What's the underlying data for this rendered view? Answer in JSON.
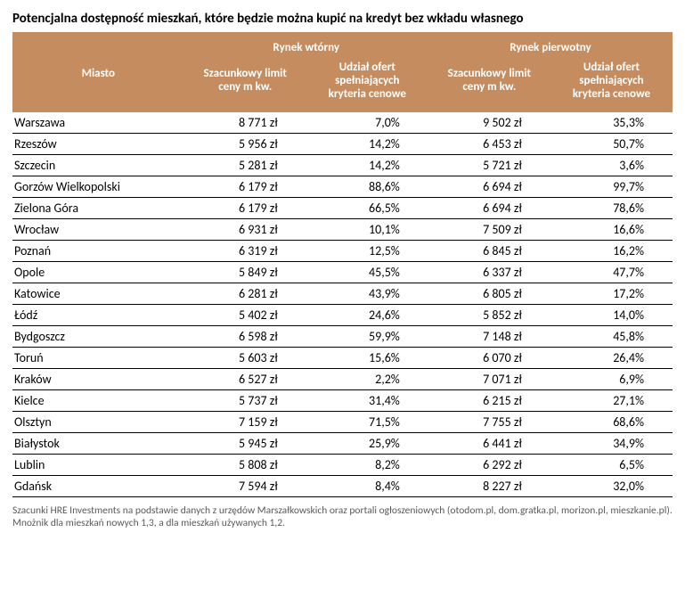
{
  "title": "Potencjalna dostępność mieszkań, które będzie można kupić na kredyt bez wkładu własnego",
  "header": {
    "city": "Miasto",
    "group_secondary": "Rynek wtórny",
    "group_primary": "Rynek pierwotny",
    "col_limit": "Szacunkowy limit\nceny m kw.",
    "col_share": "Udział ofert\nspełniających\nkryteria cenowe"
  },
  "styling": {
    "header_bg": "#c58c5f",
    "header_fg": "#ffffff",
    "row_border": "#000000",
    "body_font_size_pt": 10.5,
    "header_font_size_pt": 10,
    "title_font_size_pt": 11,
    "footnote_color": "#5a5a5a",
    "column_widths_pct": [
      26,
      18.5,
      18.5,
      18.5,
      18.5
    ],
    "num_align": "right"
  },
  "rows": [
    {
      "city": "Warszawa",
      "sec_limit": "8 771 zł",
      "sec_share": "7,0%",
      "pri_limit": "9 502 zł",
      "pri_share": "35,3%"
    },
    {
      "city": "Rzeszów",
      "sec_limit": "5 956 zł",
      "sec_share": "14,2%",
      "pri_limit": "6 453 zł",
      "pri_share": "50,7%"
    },
    {
      "city": "Szczecin",
      "sec_limit": "5 281 zł",
      "sec_share": "14,2%",
      "pri_limit": "5 721 zł",
      "pri_share": "3,6%"
    },
    {
      "city": "Gorzów Wielkopolski",
      "sec_limit": "6 179 zł",
      "sec_share": "88,6%",
      "pri_limit": "6 694 zł",
      "pri_share": "99,7%"
    },
    {
      "city": "Zielona Góra",
      "sec_limit": "6 179 zł",
      "sec_share": "66,5%",
      "pri_limit": "6 694 zł",
      "pri_share": "78,6%"
    },
    {
      "city": "Wrocław",
      "sec_limit": "6 931 zł",
      "sec_share": "10,1%",
      "pri_limit": "7 509 zł",
      "pri_share": "16,6%"
    },
    {
      "city": "Poznań",
      "sec_limit": "6 319 zł",
      "sec_share": "12,5%",
      "pri_limit": "6 845 zł",
      "pri_share": "16,2%"
    },
    {
      "city": "Opole",
      "sec_limit": "5 849 zł",
      "sec_share": "45,5%",
      "pri_limit": "6 337 zł",
      "pri_share": "47,7%"
    },
    {
      "city": "Katowice",
      "sec_limit": "6 281 zł",
      "sec_share": "43,9%",
      "pri_limit": "6 805 zł",
      "pri_share": "17,2%"
    },
    {
      "city": "Łódź",
      "sec_limit": "5 402 zł",
      "sec_share": "24,6%",
      "pri_limit": "5 852 zł",
      "pri_share": "14,0%"
    },
    {
      "city": "Bydgoszcz",
      "sec_limit": "6 598 zł",
      "sec_share": "59,9%",
      "pri_limit": "7 148 zł",
      "pri_share": "45,8%"
    },
    {
      "city": "Toruń",
      "sec_limit": "5 603 zł",
      "sec_share": "15,6%",
      "pri_limit": "6 070 zł",
      "pri_share": "26,4%"
    },
    {
      "city": "Kraków",
      "sec_limit": "6 527 zł",
      "sec_share": "2,2%",
      "pri_limit": "7 071 zł",
      "pri_share": "6,9%"
    },
    {
      "city": "Kielce",
      "sec_limit": "5 737 zł",
      "sec_share": "31,4%",
      "pri_limit": "6 215 zł",
      "pri_share": "27,1%"
    },
    {
      "city": "Olsztyn",
      "sec_limit": "7 159 zł",
      "sec_share": "71,5%",
      "pri_limit": "7 755 zł",
      "pri_share": "68,6%"
    },
    {
      "city": "Białystok",
      "sec_limit": "5 945 zł",
      "sec_share": "25,9%",
      "pri_limit": "6 441 zł",
      "pri_share": "34,9%"
    },
    {
      "city": "Lublin",
      "sec_limit": "5 808 zł",
      "sec_share": "8,2%",
      "pri_limit": "6 292 zł",
      "pri_share": "6,5%"
    },
    {
      "city": "Gdańsk",
      "sec_limit": "7 594 zł",
      "sec_share": "8,4%",
      "pri_limit": "8 227 zł",
      "pri_share": "32,0%"
    }
  ],
  "footnote": "Szacunki HRE Investments na podstawie danych z urzędów Marszałkowskich oraz portali ogłoszeniowych (otodom.pl, dom.gratka.pl, morizon.pl, mieszkanie.pl). Mnożnik dla mieszkań nowych 1,3, a dla mieszkań używanych 1,2."
}
